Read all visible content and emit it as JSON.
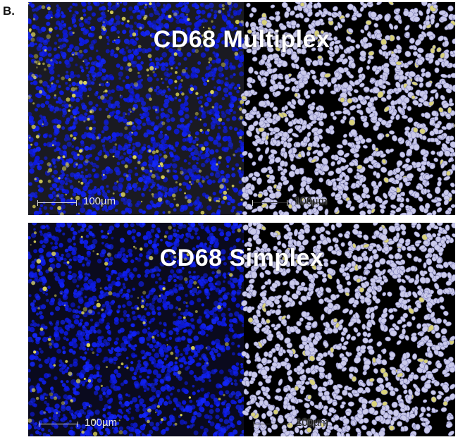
{
  "figure_label": "B.",
  "panels": {
    "top": {
      "title": "CD68 Multiplex",
      "scale_label": "100µm"
    },
    "bottom": {
      "title": "CD68 Simplex",
      "scale_label": "100µm"
    }
  },
  "colors": {
    "nuclei": "#1a2fd8",
    "marker": "#e8e05a",
    "segmentation_cell": "#c9c9ea",
    "segmentation_positive": "#d8d27a",
    "background": "#000000"
  }
}
